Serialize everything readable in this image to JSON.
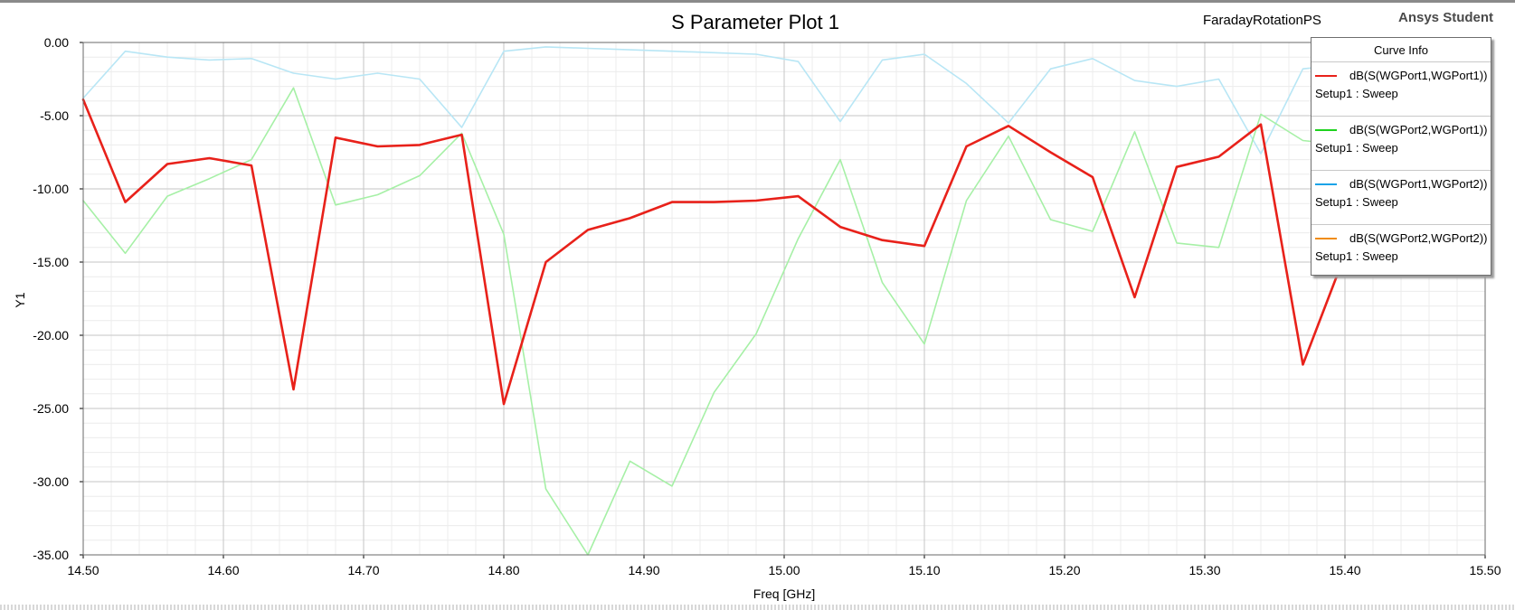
{
  "header": {
    "title": "S Parameter Plot 1",
    "project": "FaradayRotationPS",
    "brand": "Ansys Student"
  },
  "legend": {
    "title": "Curve Info",
    "items": [
      {
        "name": "dB(S(WGPort1,WGPort1))",
        "setup": "Setup1 : Sweep",
        "color": "#e8211a"
      },
      {
        "name": "dB(S(WGPort2,WGPort1))",
        "setup": "Setup1 : Sweep",
        "color": "#1ed21e"
      },
      {
        "name": "dB(S(WGPort1,WGPort2))",
        "setup": "Setup1 : Sweep",
        "color": "#1aa3e8"
      },
      {
        "name": "dB(S(WGPort2,WGPort2))",
        "setup": "Setup1 : Sweep",
        "color": "#f08c10"
      }
    ]
  },
  "chart_data": {
    "type": "line",
    "title": "S Parameter Plot 1",
    "xlabel": "Freq [GHz]",
    "ylabel": "Y1",
    "xlim": [
      14.5,
      15.5
    ],
    "ylim": [
      -35,
      0
    ],
    "grid": true,
    "legend_position": "top-right",
    "x_ticks": [
      "14.50",
      "14.60",
      "14.70",
      "14.80",
      "14.90",
      "15.00",
      "15.10",
      "15.20",
      "15.30",
      "15.40",
      "15.50"
    ],
    "y_ticks": [
      "0.00",
      "-5.00",
      "-10.00",
      "-15.00",
      "-20.00",
      "-25.00",
      "-30.00",
      "-35.00"
    ],
    "x": [
      14.5,
      14.53,
      14.56,
      14.59,
      14.62,
      14.65,
      14.68,
      14.71,
      14.74,
      14.77,
      14.8,
      14.83,
      14.86,
      14.89,
      14.92,
      14.95,
      14.98,
      15.01,
      15.04,
      15.07,
      15.1,
      15.13,
      15.16,
      15.19,
      15.22,
      15.25,
      15.28,
      15.31,
      15.34,
      15.37,
      15.4
    ],
    "series": [
      {
        "name": "dB(S(WGPort1,WGPort1))",
        "color": "#e8211a",
        "width": 2.6,
        "values": [
          -3.9,
          -10.9,
          -8.3,
          -7.9,
          -8.4,
          -23.7,
          -6.5,
          -7.1,
          -7.0,
          -6.3,
          -24.7,
          -15.0,
          -12.8,
          -12.0,
          -10.9,
          -10.9,
          -10.8,
          -10.5,
          -12.6,
          -13.5,
          -13.9,
          -7.1,
          -5.7,
          -7.5,
          -9.2,
          -17.4,
          -8.5,
          -7.8,
          -5.6,
          -22.0,
          -14.5
        ]
      },
      {
        "name": "dB(S(WGPort2,WGPort1))",
        "color": "#a6f0a6",
        "width": 1.6,
        "values": [
          -10.8,
          -14.4,
          -10.5,
          -9.3,
          -8.0,
          -3.1,
          -11.1,
          -10.4,
          -9.1,
          -6.2,
          -13.1,
          -30.5,
          -35.0,
          -28.6,
          -30.3,
          -23.9,
          -19.9,
          -13.4,
          -8.0,
          -16.4,
          -20.6,
          -10.8,
          -6.4,
          -12.1,
          -12.9,
          -6.1,
          -13.7,
          -14.0,
          -4.9,
          -6.7,
          -7.0
        ]
      },
      {
        "name": "dB(S(WGPort1,WGPort2))",
        "color": "#b8e6f5",
        "width": 1.6,
        "values": [
          -3.8,
          -0.6,
          -1.0,
          -1.2,
          -1.1,
          -2.1,
          -2.5,
          -2.1,
          -2.5,
          -5.8,
          -0.6,
          -0.3,
          -0.4,
          -0.5,
          -0.6,
          -0.7,
          -0.8,
          -1.3,
          -5.4,
          -1.2,
          -0.8,
          -2.8,
          -5.5,
          -1.8,
          -1.1,
          -2.6,
          -3.0,
          -2.5,
          -7.6,
          -1.8,
          -1.5
        ]
      },
      {
        "name": "dB(S(WGPort2,WGPort2))",
        "color": "#f08c10",
        "width": 1.4,
        "values": [
          -3.9,
          -10.9,
          -8.3,
          -7.9,
          -8.4,
          -23.7,
          -6.5,
          -7.1,
          -7.0,
          -6.3,
          -24.7,
          -15.0,
          -12.8,
          -12.0,
          -10.9,
          -10.9,
          -10.8,
          -10.5,
          -12.6,
          -13.5,
          -13.9,
          -7.1,
          -5.7,
          -7.5,
          -9.2,
          -17.4,
          -8.5,
          -7.8,
          -5.6,
          -22.0,
          -14.5
        ]
      }
    ]
  }
}
